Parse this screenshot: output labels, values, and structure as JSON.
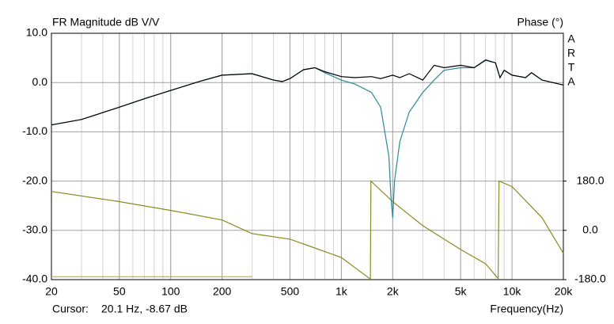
{
  "chart_data": {
    "type": "line",
    "title": "FR Magnitude dB V/V",
    "y2_label": "Phase (°)",
    "x_label": "Frequency(Hz)",
    "logo": [
      "A",
      "R",
      "T",
      "A"
    ],
    "cursor_label": "Cursor:",
    "cursor_value": "20.1 Hz, -8.67 dB",
    "xscale": "log",
    "grid": true,
    "xlim": [
      20,
      20000
    ],
    "xticks": [
      20,
      50,
      100,
      200,
      500,
      {
        "value": 1000,
        "label": "1k"
      },
      {
        "value": 2000,
        "label": "2k"
      },
      {
        "value": 5000,
        "label": "5k"
      },
      {
        "value": 10000,
        "label": "10k"
      },
      {
        "value": 20000,
        "label": "20k"
      }
    ],
    "ylim": [
      -40,
      10
    ],
    "yticks": [
      {
        "value": 10,
        "label": "10.0"
      },
      {
        "value": 0,
        "label": "0.0"
      },
      {
        "value": -10,
        "label": "-10.0"
      },
      {
        "value": -20,
        "label": "-20.0"
      },
      {
        "value": -30,
        "label": "-30.0"
      },
      {
        "value": -40,
        "label": "-40.0"
      }
    ],
    "y2lim": [
      -180,
      720
    ],
    "y2ticks": [
      {
        "value": 180,
        "label": "180.0"
      },
      {
        "value": 0,
        "label": "0.0"
      },
      {
        "value": -180,
        "label": "-180.0"
      }
    ],
    "series": [
      {
        "color": "#000000",
        "x": [
          20,
          30,
          50,
          70,
          100,
          150,
          200,
          300,
          400,
          450,
          500,
          600,
          700,
          800,
          1000,
          1200,
          1500,
          1700,
          2000,
          2200,
          2500,
          3000,
          3500,
          4000,
          5000,
          6000,
          7000,
          8000,
          8500,
          9000,
          10000,
          12000,
          13000,
          15000,
          20000
        ],
        "values": [
          -8.6,
          -7.5,
          -5,
          -3.3,
          -1.6,
          0.3,
          1.5,
          1.8,
          0.5,
          0.2,
          0.8,
          2.6,
          3,
          2.2,
          1.2,
          1,
          1.2,
          0.8,
          1.5,
          1,
          1.8,
          0.5,
          3.5,
          3,
          3.5,
          3,
          4.6,
          4,
          1,
          2.5,
          1.5,
          1,
          2,
          0.5,
          -0.5
        ]
      },
      {
        "color": "#2a8a96",
        "x": [
          20,
          30,
          50,
          70,
          100,
          150,
          200,
          300,
          400,
          450,
          500,
          600,
          700,
          800,
          1000,
          1200,
          1500,
          1700,
          1900,
          1950,
          2000,
          2050,
          2200,
          2500,
          3000,
          3500,
          4000,
          5000,
          6000,
          7000,
          8000,
          8500,
          9000,
          10000,
          12000,
          13000,
          15000,
          20000
        ],
        "values": [
          -8.6,
          -7.5,
          -5,
          -3.3,
          -1.6,
          0.3,
          1.5,
          1.8,
          0.5,
          0.2,
          0.8,
          2.6,
          3,
          2,
          0.5,
          -0.3,
          -2,
          -5,
          -15,
          -23,
          -27.5,
          -20,
          -12,
          -6,
          -2,
          0.5,
          2.5,
          3,
          3,
          4.5,
          4,
          1,
          2.5,
          1.5,
          1,
          2,
          0.5,
          -0.5
        ]
      },
      {
        "color": "#8a8a1e",
        "axis": "y2",
        "x": [
          20,
          50,
          100,
          200,
          300,
          500,
          1000,
          1480,
          1490,
          2000,
          3000,
          5000,
          7000,
          8300,
          8400,
          10000,
          15000,
          20000
        ],
        "values": [
          142,
          105,
          73,
          38,
          -12,
          -32,
          -99,
          -178,
          180,
          105,
          17,
          -70,
          -122,
          -176,
          180,
          160,
          46,
          -84
        ]
      },
      {
        "color": "#c8b400",
        "x": [
          20,
          300
        ],
        "values": [
          -39.4,
          -39.4
        ]
      }
    ]
  }
}
